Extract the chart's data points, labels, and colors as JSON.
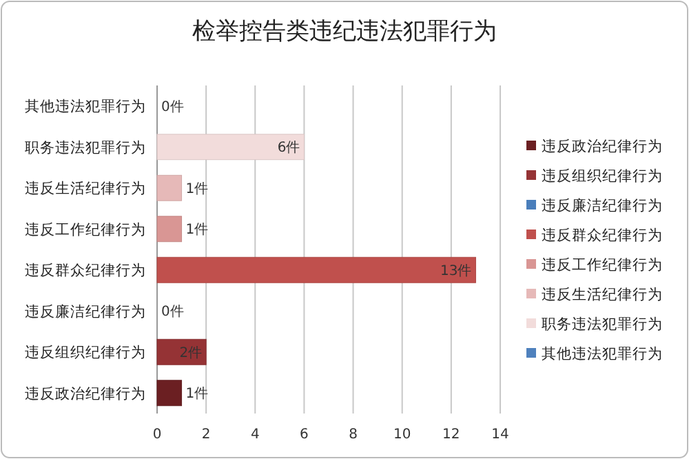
{
  "chart_data": {
    "type": "bar",
    "title": "检举控告类违纪违法犯罪行为",
    "orientation": "horizontal",
    "stacked": true,
    "categories": [
      "其他违法犯罪行为",
      "职务违法犯罪行为",
      "违反生活纪律行为",
      "违反工作纪律行为",
      "违反群众纪律行为",
      "违反廉洁纪律行为",
      "违反组织纪律行为",
      "违反政治纪律行为"
    ],
    "series": [
      {
        "name": "违反政治纪律行为",
        "color": "#6b1f22",
        "values": [
          null,
          null,
          null,
          null,
          null,
          null,
          null,
          1
        ],
        "value_labels": [
          null,
          null,
          null,
          null,
          null,
          null,
          null,
          "1件"
        ]
      },
      {
        "name": "违反组织纪律行为",
        "color": "#953335",
        "values": [
          null,
          null,
          null,
          null,
          null,
          null,
          2,
          null
        ],
        "value_labels": [
          null,
          null,
          null,
          null,
          null,
          null,
          "2件",
          null
        ]
      },
      {
        "name": "违反廉洁纪律行为",
        "color": "#4a7ebb",
        "values": [
          null,
          null,
          null,
          null,
          null,
          0,
          null,
          null
        ],
        "value_labels": [
          null,
          null,
          null,
          null,
          null,
          "0件",
          null,
          null
        ]
      },
      {
        "name": "违反群众纪律行为",
        "color": "#c0504d",
        "values": [
          null,
          null,
          null,
          null,
          13,
          null,
          null,
          null
        ],
        "value_labels": [
          null,
          null,
          null,
          null,
          "13件",
          null,
          null,
          null
        ]
      },
      {
        "name": "违反工作纪律行为",
        "color": "#d99694",
        "values": [
          null,
          null,
          null,
          1,
          null,
          null,
          null,
          null
        ],
        "value_labels": [
          null,
          null,
          null,
          "1件",
          null,
          null,
          null,
          null
        ]
      },
      {
        "name": "违反生活纪律行为",
        "color": "#e6b9b8",
        "values": [
          null,
          null,
          1,
          null,
          null,
          null,
          null,
          null
        ],
        "value_labels": [
          null,
          null,
          "1件",
          null,
          null,
          null,
          null,
          null
        ]
      },
      {
        "name": "职务违法犯罪行为",
        "color": "#f2dcdb",
        "values": [
          null,
          6,
          null,
          null,
          null,
          null,
          null,
          null
        ],
        "value_labels": [
          null,
          "6件",
          null,
          null,
          null,
          null,
          null,
          null
        ]
      },
      {
        "name": "其他违法犯罪行为",
        "color": "#4f81bd",
        "values": [
          0,
          null,
          null,
          null,
          null,
          null,
          null,
          null
        ],
        "value_labels": [
          "0件",
          null,
          null,
          null,
          null,
          null,
          null,
          null
        ]
      }
    ],
    "xlim": [
      0,
      14
    ],
    "xticks": [
      0,
      2,
      4,
      6,
      8,
      10,
      12,
      14
    ],
    "grid": "x",
    "legend": "right"
  }
}
